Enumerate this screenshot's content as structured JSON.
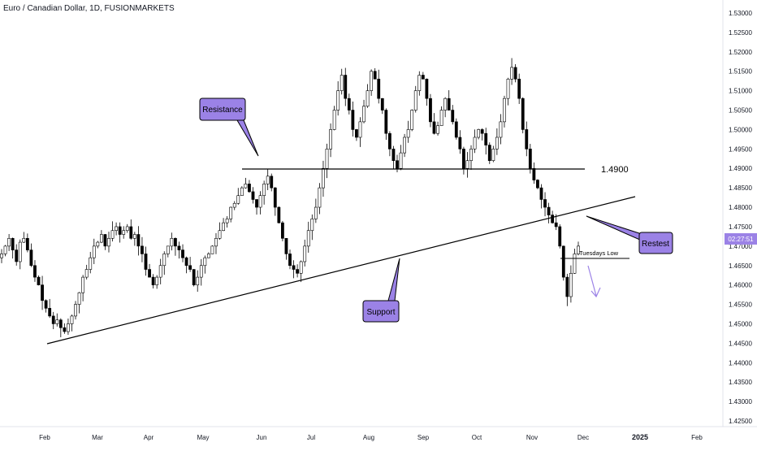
{
  "chart_data": {
    "type": "candlestick",
    "title": "Euro / Canadian Dollar, 1D, FUSIONMARKETS",
    "ylim": [
      1.4225,
      1.5325
    ],
    "y_ticks": [
      "1.53000",
      "1.52500",
      "1.52000",
      "1.51500",
      "1.51000",
      "1.50500",
      "1.50000",
      "1.49500",
      "1.49000",
      "1.48500",
      "1.48000",
      "1.47500",
      "1.47000",
      "1.46500",
      "1.46000",
      "1.45500",
      "1.45000",
      "1.44500",
      "1.44000",
      "1.43500",
      "1.43000",
      "1.42500"
    ],
    "x_ticks": [
      "Feb",
      "Mar",
      "Apr",
      "May",
      "Jun",
      "Jul",
      "Aug",
      "Sep",
      "Oct",
      "Nov",
      "Dec",
      "2025",
      "Feb"
    ],
    "current_price_label": "02:27:51",
    "colors": {
      "up": "#ffffff",
      "down": "#000000",
      "wick": "#000000",
      "accent": "#9b82e6"
    },
    "closes": [
      1.468,
      1.47,
      1.472,
      1.469,
      1.466,
      1.471,
      1.472,
      1.469,
      1.465,
      1.462,
      1.46,
      1.456,
      1.454,
      1.452,
      1.45,
      1.451,
      1.449,
      1.448,
      1.45,
      1.452,
      1.455,
      1.458,
      1.462,
      1.464,
      1.467,
      1.47,
      1.471,
      1.473,
      1.47,
      1.472,
      1.474,
      1.475,
      1.473,
      1.474,
      1.475,
      1.472,
      1.473,
      1.47,
      1.468,
      1.464,
      1.462,
      1.46,
      1.462,
      1.465,
      1.468,
      1.47,
      1.472,
      1.47,
      1.469,
      1.467,
      1.465,
      1.464,
      1.46,
      1.462,
      1.465,
      1.467,
      1.468,
      1.47,
      1.472,
      1.474,
      1.476,
      1.477,
      1.48,
      1.481,
      1.483,
      1.485,
      1.486,
      1.484,
      1.482,
      1.48,
      1.483,
      1.486,
      1.488,
      1.485,
      1.48,
      1.476,
      1.472,
      1.468,
      1.465,
      1.464,
      1.463,
      1.466,
      1.47,
      1.474,
      1.477,
      1.48,
      1.485,
      1.49,
      1.495,
      1.5,
      1.505,
      1.51,
      1.514,
      1.508,
      1.505,
      1.5,
      1.498,
      1.502,
      1.506,
      1.51,
      1.515,
      1.513,
      1.508,
      1.505,
      1.499,
      1.495,
      1.492,
      1.49,
      1.494,
      1.498,
      1.5,
      1.505,
      1.51,
      1.514,
      1.513,
      1.508,
      1.502,
      1.499,
      1.501,
      1.505,
      1.508,
      1.505,
      1.502,
      1.498,
      1.495,
      1.49,
      1.492,
      1.495,
      1.498,
      1.5,
      1.499,
      1.496,
      1.492,
      1.495,
      1.498,
      1.502,
      1.508,
      1.513,
      1.516,
      1.513,
      1.508,
      1.5,
      1.495,
      1.49,
      1.487,
      1.485,
      1.482,
      1.48,
      1.478,
      1.476,
      1.475,
      1.47,
      1.462,
      1.457,
      1.463,
      1.468,
      1.47
    ]
  },
  "annotations": {
    "resistance_label": "Resistance",
    "support_label": "Support",
    "restest_label": "Restest",
    "level_label": "1.4900",
    "tuesdays_low_label": "Tuesdays Low"
  }
}
